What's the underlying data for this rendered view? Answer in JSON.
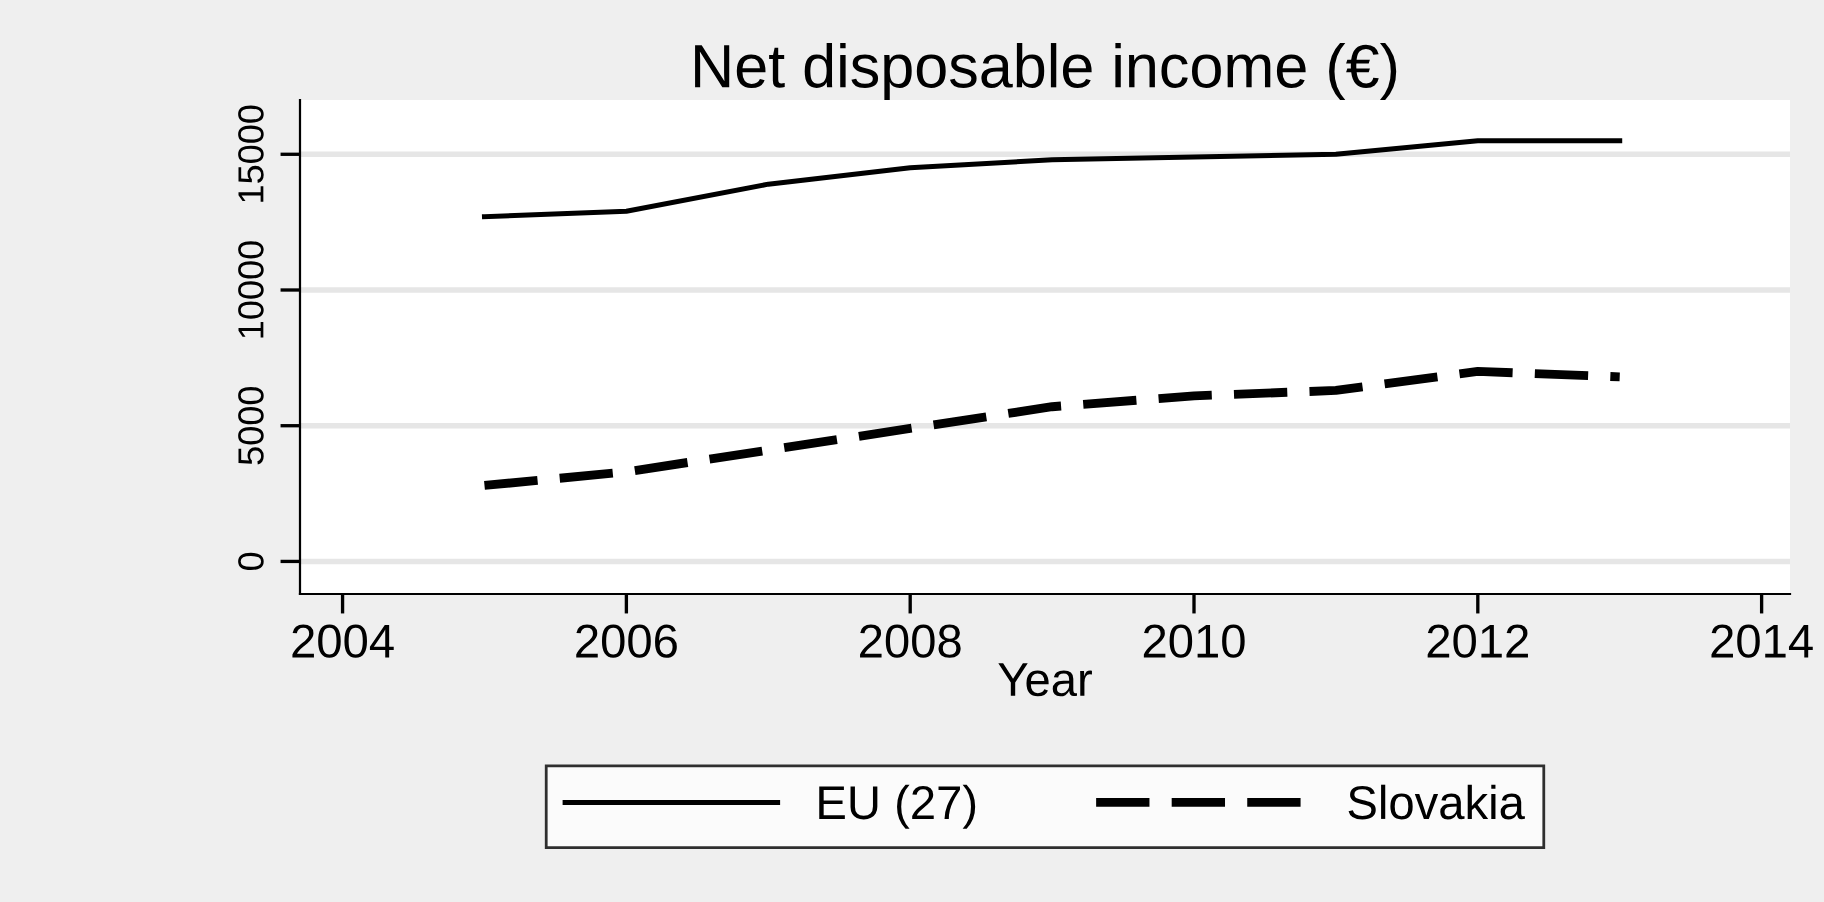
{
  "chart_data": {
    "type": "line",
    "title": "Net disposable income (€)",
    "xlabel": "Year",
    "x": [
      2005,
      2006,
      2007,
      2008,
      2009,
      2010,
      2011,
      2012,
      2013
    ],
    "series": [
      {
        "name": "EU (27)",
        "color": "#000000",
        "line_style": "solid",
        "values": [
          12700,
          12900,
          13900,
          14500,
          14800,
          14900,
          15000,
          15500,
          15500
        ]
      },
      {
        "name": "Slovakia",
        "color": "#000000",
        "line_style": "dashed",
        "values": [
          2800,
          3300,
          4100,
          4900,
          5700,
          6100,
          6300,
          7000,
          6800
        ]
      }
    ],
    "xlim": [
      2003.7,
      2014.2
    ],
    "xticks": [
      2004,
      2006,
      2008,
      2010,
      2012,
      2014
    ],
    "ylim": [
      -1200,
      17000
    ],
    "yticks": [
      0,
      5000,
      10000,
      15000
    ],
    "grid": "y",
    "legend": "bottom"
  }
}
